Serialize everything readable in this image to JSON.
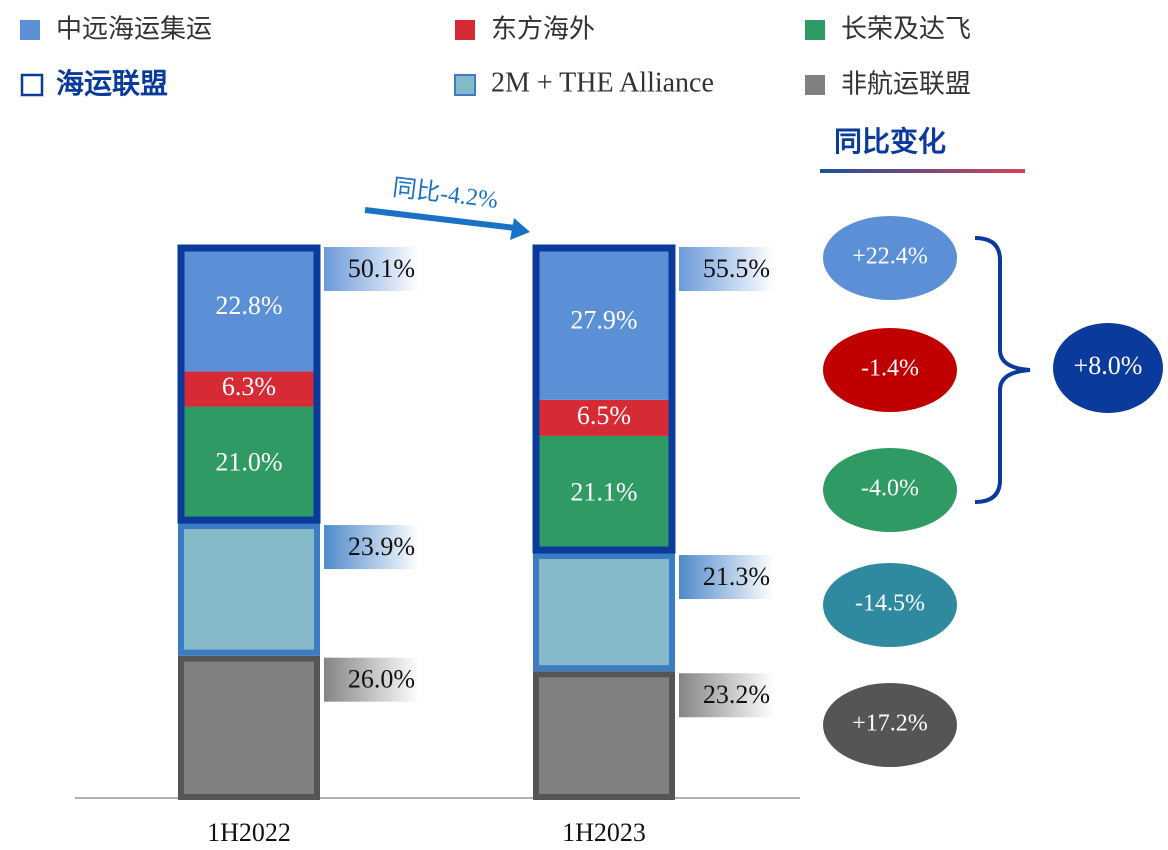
{
  "chart_data": {
    "type": "bar",
    "stacked": true,
    "categories": [
      "1H2022",
      "1H2023"
    ],
    "series": [
      {
        "name": "中远海运集运",
        "color": "#5b8fd6",
        "values": [
          22.8,
          27.9
        ],
        "value_labels": [
          "22.8%",
          "27.9%"
        ]
      },
      {
        "name": "东方海外",
        "color": "#d62b35",
        "values": [
          6.3,
          6.5
        ],
        "value_labels": [
          "6.3%",
          "6.5%"
        ]
      },
      {
        "name": "长荣及达飞",
        "color": "#2f9a63",
        "values": [
          21.0,
          21.1
        ],
        "value_labels": [
          "21.0%",
          "21.1%"
        ]
      },
      {
        "name": "2M + THE Alliance",
        "color": "#86b9c8",
        "values": [
          23.9,
          21.3
        ],
        "value_labels": [
          "23.9%",
          "21.3%"
        ]
      },
      {
        "name": "非航运联盟",
        "color": "#808080",
        "values": [
          26.0,
          23.2
        ],
        "value_labels": [
          "26.0%",
          "23.2%"
        ]
      }
    ],
    "alliance": {
      "name": "海运联盟",
      "color": "#0a3a9c",
      "values": [
        50.1,
        55.5
      ],
      "value_labels": [
        "50.1%",
        "55.5%"
      ]
    },
    "annotation": "同比-4.2%",
    "yoy": {
      "title": "同比变化",
      "values": [
        22.4,
        -1.4,
        -4.0,
        -14.5,
        17.2
      ],
      "value_labels": [
        "+22.4%",
        "-1.4%",
        "-4.0%",
        "-14.5%",
        "+17.2%"
      ],
      "colors": [
        "#5b8fd6",
        "#c00000",
        "#2f9a63",
        "#2f8aa0",
        "#555555"
      ],
      "alliance_value": 8.0,
      "alliance_label": "+8.0%",
      "alliance_color": "#0a3a9c"
    }
  }
}
